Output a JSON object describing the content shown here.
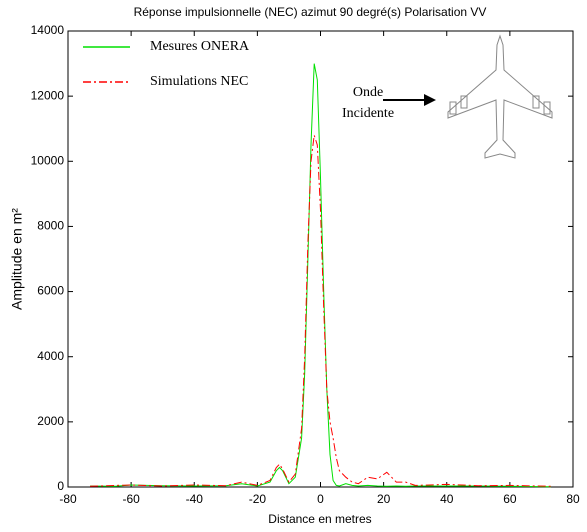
{
  "chart_data": {
    "type": "line",
    "title": "Réponse impulsionnelle (NEC) azimut 90 degré(s) Polarisation VV",
    "x_label": "Distance en metres",
    "y_label": "Amplitude en m²",
    "annotation": [
      "Onde",
      "Incidente"
    ],
    "x": [
      -73,
      -65,
      -60,
      -50,
      -40,
      -30,
      -25,
      -20,
      -16,
      -14,
      -13,
      -12,
      -10,
      -8,
      -6,
      -5,
      -4,
      -3,
      -2,
      -1,
      0,
      1,
      2,
      3,
      4,
      5,
      6,
      8,
      10,
      12,
      15,
      18,
      21,
      24,
      27,
      30,
      40,
      50,
      60,
      73
    ],
    "series": [
      {
        "name": "Mesures ONERA",
        "color": "#00e000",
        "dash": "solid",
        "values": [
          30,
          20,
          60,
          40,
          30,
          40,
          100,
          30,
          150,
          500,
          600,
          500,
          100,
          300,
          1500,
          3500,
          7000,
          10500,
          13000,
          12500,
          9500,
          6000,
          3000,
          1000,
          200,
          50,
          30,
          100,
          50,
          30,
          50,
          30,
          20,
          30,
          20,
          30,
          30,
          30,
          20,
          10
        ]
      },
      {
        "name": "Simulations NEC",
        "color": "#ff0000",
        "dash": "dashdot",
        "values": [
          20,
          50,
          60,
          30,
          60,
          40,
          150,
          50,
          200,
          600,
          700,
          550,
          150,
          400,
          1800,
          4000,
          7500,
          10000,
          10800,
          10500,
          8500,
          5500,
          3000,
          2000,
          1500,
          900,
          500,
          300,
          150,
          100,
          300,
          250,
          450,
          150,
          150,
          50,
          80,
          40,
          50,
          20
        ]
      }
    ],
    "xlim": [
      -80,
      80
    ],
    "xticks": [
      -80,
      -60,
      -40,
      -20,
      0,
      20,
      40,
      60,
      80
    ],
    "ylim": [
      0,
      14000
    ],
    "yticks": [
      0,
      2000,
      4000,
      6000,
      8000,
      10000,
      12000,
      14000
    ],
    "grid": false,
    "legend": "upper left"
  }
}
